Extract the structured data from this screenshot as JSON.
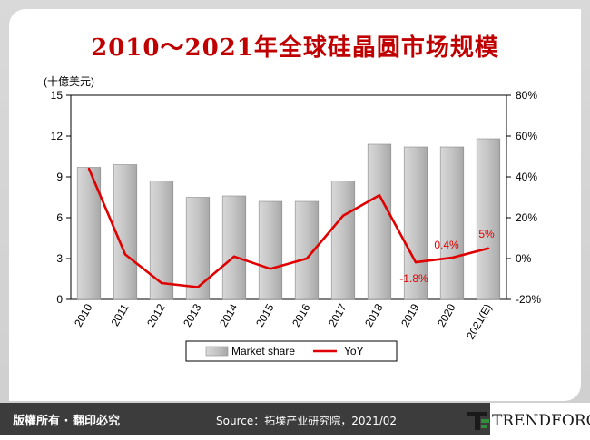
{
  "title": "2010～2021年全球硅晶圆市场规模",
  "footer": {
    "rights": "版權所有 · 翻印必究",
    "source": "Source：拓墣产业研究院，2021/02",
    "logo_text": "TRENDFORCE"
  },
  "chart_data": {
    "type": "bar",
    "categories": [
      "2010",
      "2011",
      "2012",
      "2013",
      "2014",
      "2015",
      "2016",
      "2017",
      "2018",
      "2019",
      "2020",
      "2021(E)"
    ],
    "y_unit_label": "(十億美元)",
    "ylim": [
      0,
      15
    ],
    "yticks": [
      0,
      3,
      6,
      9,
      12,
      15
    ],
    "y2lim": [
      -20,
      80
    ],
    "y2ticks": [
      "-20%",
      "0%",
      "20%",
      "40%",
      "60%",
      "80%"
    ],
    "series": [
      {
        "name": "Market share",
        "kind": "bar",
        "color": "#bfbfbf",
        "values": [
          9.7,
          9.9,
          8.7,
          7.5,
          7.6,
          7.2,
          7.2,
          8.7,
          11.4,
          11.2,
          11.2,
          11.8
        ]
      },
      {
        "name": "YoY",
        "kind": "line",
        "color": "#e00000",
        "axis": "right",
        "values": [
          44,
          2,
          -12,
          -14,
          1,
          -5,
          0,
          21,
          31,
          -1.8,
          0.4,
          5
        ]
      }
    ],
    "annotations": [
      {
        "category": "2019",
        "text": "-1.8%"
      },
      {
        "category": "2020",
        "text": "0.4%"
      },
      {
        "category": "2021(E)",
        "text": "5%"
      }
    ],
    "legend": "bottom",
    "grid": false
  }
}
